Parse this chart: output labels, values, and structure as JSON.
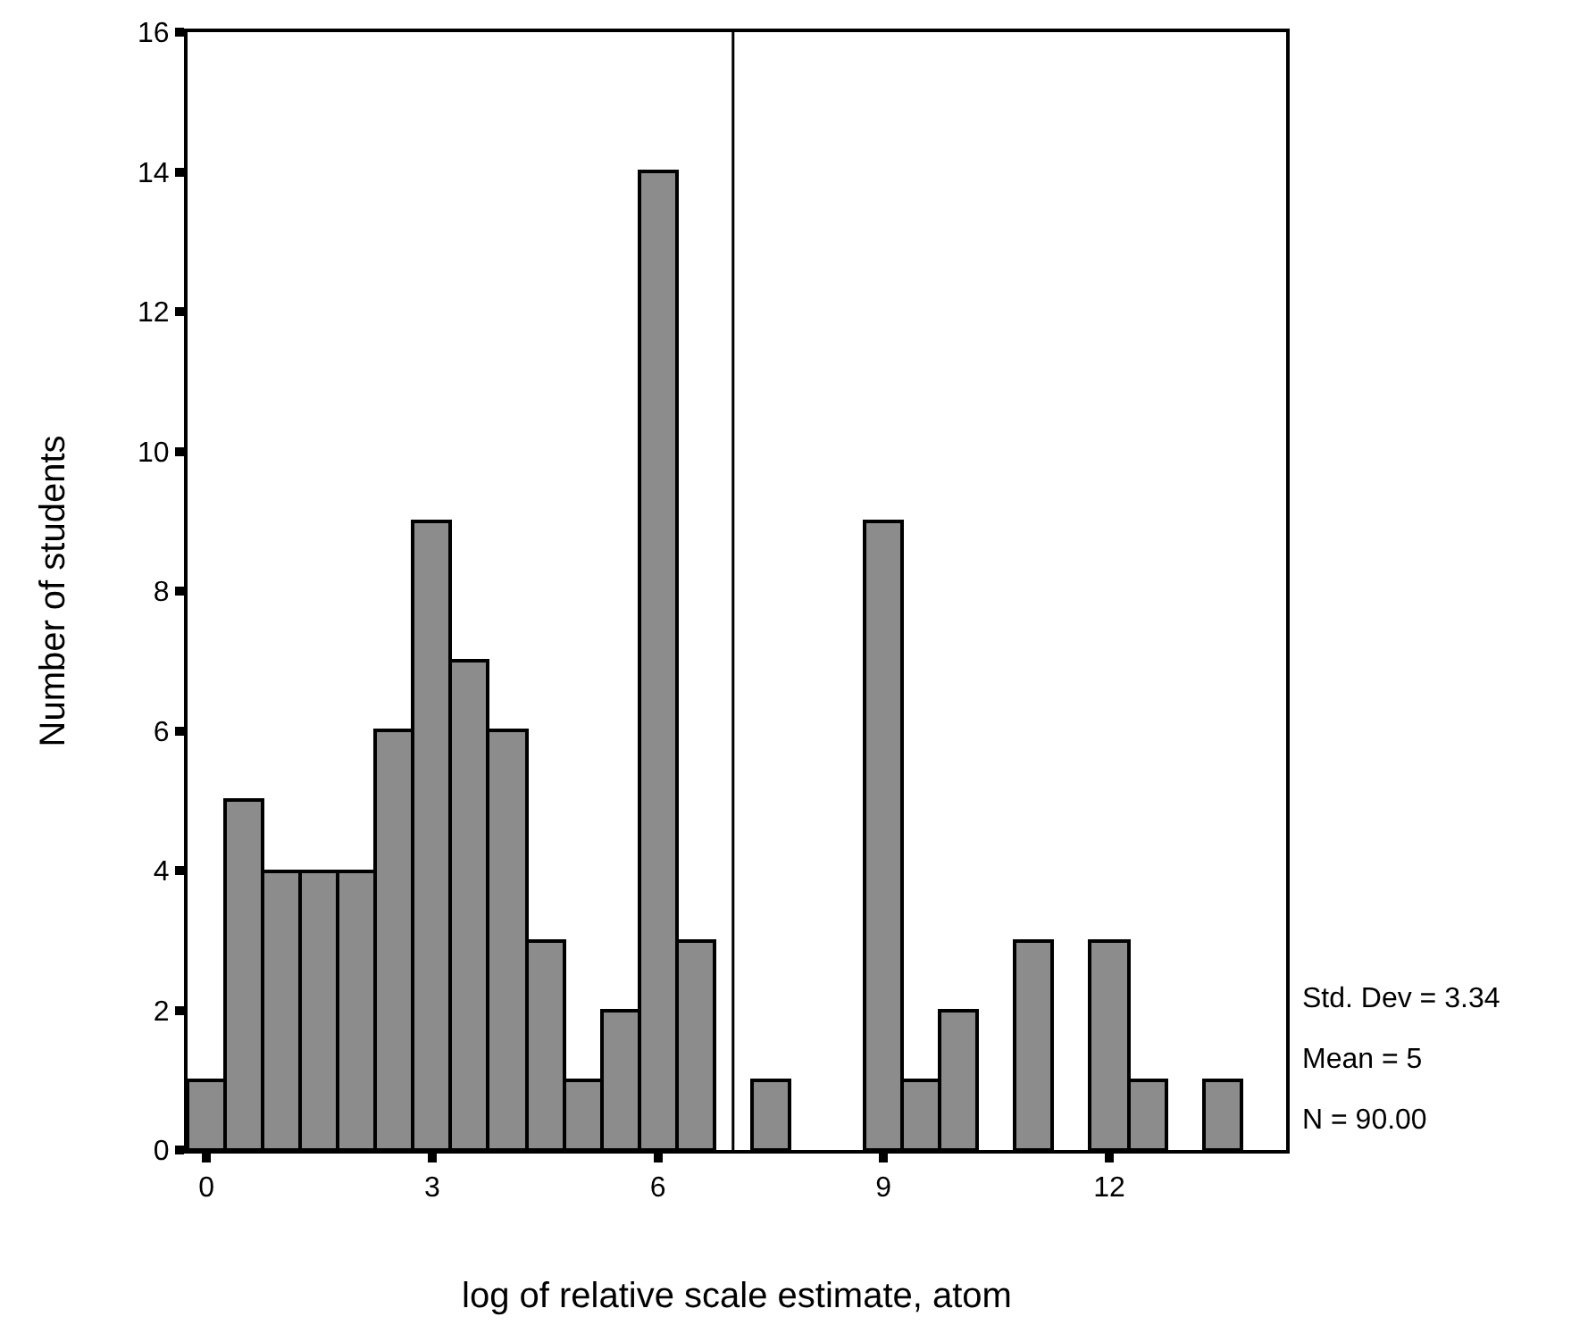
{
  "chart_data": {
    "type": "histogram",
    "xlabel": "log of relative scale estimate, atom",
    "ylabel": "Number of students",
    "bins": [
      -0.25,
      0.25,
      0.75,
      1.25,
      1.75,
      2.25,
      2.75,
      3.25,
      3.75,
      4.25,
      4.75,
      5.25,
      5.75,
      6.25,
      6.75,
      7.25,
      7.75,
      8.25,
      8.75,
      9.25,
      9.75,
      10.25,
      10.75,
      11.25,
      11.75,
      12.25,
      12.75,
      13.25,
      13.75
    ],
    "values": [
      1,
      5,
      4,
      4,
      4,
      6,
      9,
      7,
      6,
      3,
      1,
      2,
      14,
      3,
      0,
      1,
      0,
      0,
      9,
      1,
      2,
      0,
      3,
      0,
      3,
      1,
      0,
      1
    ],
    "color": "#8c8c8c",
    "xlim": [
      -0.25,
      14.35
    ],
    "xticks": [
      0,
      3,
      6,
      9,
      12
    ],
    "ylim": [
      0,
      16
    ],
    "yticks": [
      0,
      2,
      4,
      6,
      8,
      10,
      12,
      14,
      16
    ],
    "ref_lines": [
      {
        "axis": "x",
        "value": 7
      }
    ],
    "annotations": [
      "Std. Dev = 3.34",
      "Mean = 5",
      "N = 90.00"
    ],
    "grid": false,
    "legend": false
  }
}
